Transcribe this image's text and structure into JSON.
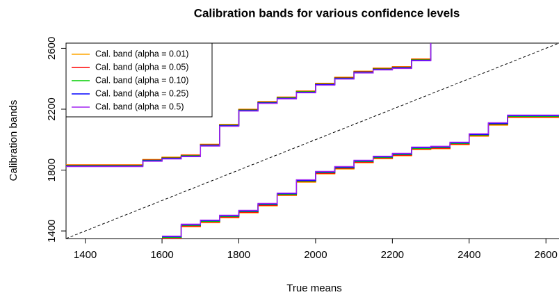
{
  "chart_data": {
    "type": "line",
    "title": "Calibration bands for various confidence levels",
    "x_label": "True means",
    "y_label": "Calibration bands",
    "x": [
      1350,
      1400,
      1450,
      1500,
      1550,
      1600,
      1650,
      1700,
      1750,
      1800,
      1850,
      1900,
      1950,
      2000,
      2050,
      2100,
      2150,
      2200,
      2250,
      2300,
      2350,
      2400,
      2450,
      2500,
      2550,
      2600,
      2634
    ],
    "series": [
      {
        "name": "Cal. band (alpha = 0.01)",
        "color": "#ffa500",
        "values": [
          1835,
          1835,
          1835,
          1835,
          1870,
          1885,
          1900,
          1970,
          2100,
          2200,
          2250,
          2280,
          2320,
          2370,
          2410,
          2450,
          2470,
          2480,
          2530,
          2650,
          null,
          null,
          null,
          null,
          null,
          null,
          null
        ],
        "lower": [
          null,
          null,
          null,
          null,
          null,
          1350,
          1428,
          1455,
          1487,
          1519,
          1565,
          1633,
          1720,
          1775,
          1807,
          1848,
          1875,
          1894,
          1935,
          1940,
          1967,
          2022,
          2095,
          2145,
          2145,
          2145,
          2145
        ]
      },
      {
        "name": "Cal. band (alpha = 0.05)",
        "color": "#ff0000",
        "values": [
          1832,
          1832,
          1832,
          1832,
          1867,
          1882,
          1897,
          1967,
          2097,
          2197,
          2247,
          2277,
          2317,
          2367,
          2407,
          2447,
          2467,
          2477,
          2527,
          2650,
          null,
          null,
          null,
          null,
          null,
          null,
          null
        ],
        "lower": [
          null,
          null,
          null,
          null,
          null,
          1354,
          1432,
          1459,
          1491,
          1523,
          1569,
          1637,
          1724,
          1779,
          1811,
          1852,
          1879,
          1898,
          1939,
          1944,
          1971,
          2026,
          2099,
          2149,
          2149,
          2149,
          2149
        ]
      },
      {
        "name": "Cal. band (alpha = 0.10)",
        "color": "#00cd00",
        "values": [
          1829,
          1829,
          1829,
          1829,
          1864,
          1879,
          1894,
          1964,
          2094,
          2194,
          2244,
          2274,
          2314,
          2364,
          2404,
          2444,
          2464,
          2474,
          2524,
          2650,
          null,
          null,
          null,
          null,
          null,
          null,
          null
        ],
        "lower": [
          null,
          null,
          null,
          null,
          null,
          1358,
          1436,
          1463,
          1495,
          1527,
          1573,
          1641,
          1728,
          1783,
          1815,
          1856,
          1883,
          1902,
          1943,
          1948,
          1975,
          2030,
          2103,
          2153,
          2153,
          2153,
          2153
        ]
      },
      {
        "name": "Cal. band (alpha = 0.25)",
        "color": "#0000ff",
        "values": [
          1826,
          1826,
          1826,
          1826,
          1861,
          1876,
          1891,
          1961,
          2091,
          2191,
          2241,
          2271,
          2311,
          2361,
          2401,
          2441,
          2461,
          2471,
          2521,
          2650,
          null,
          null,
          null,
          null,
          null,
          null,
          null
        ],
        "lower": [
          null,
          null,
          null,
          null,
          null,
          1362,
          1440,
          1467,
          1499,
          1531,
          1577,
          1645,
          1732,
          1787,
          1819,
          1860,
          1887,
          1906,
          1947,
          1952,
          1979,
          2034,
          2107,
          2157,
          2157,
          2157,
          2157
        ]
      },
      {
        "name": "Cal. band (alpha = 0.5)",
        "color": "#a020f0",
        "values": [
          1823,
          1823,
          1823,
          1823,
          1858,
          1873,
          1888,
          1958,
          2088,
          2188,
          2238,
          2268,
          2308,
          2358,
          2398,
          2438,
          2458,
          2468,
          2518,
          2650,
          null,
          null,
          null,
          null,
          null,
          null,
          null
        ],
        "lower": [
          null,
          null,
          null,
          null,
          null,
          1366,
          1444,
          1471,
          1503,
          1535,
          1581,
          1649,
          1736,
          1791,
          1823,
          1864,
          1891,
          1910,
          1951,
          1956,
          1983,
          2038,
          2111,
          2161,
          2161,
          2161,
          2161
        ]
      }
    ],
    "xlim": [
      1350,
      2634
    ],
    "xticks": [
      1400,
      1600,
      1800,
      2000,
      2200,
      2400,
      2600
    ],
    "ylim": [
      1350,
      2634
    ],
    "yticks": [
      1400,
      1800,
      2200,
      2600
    ],
    "legend": "top-left"
  }
}
